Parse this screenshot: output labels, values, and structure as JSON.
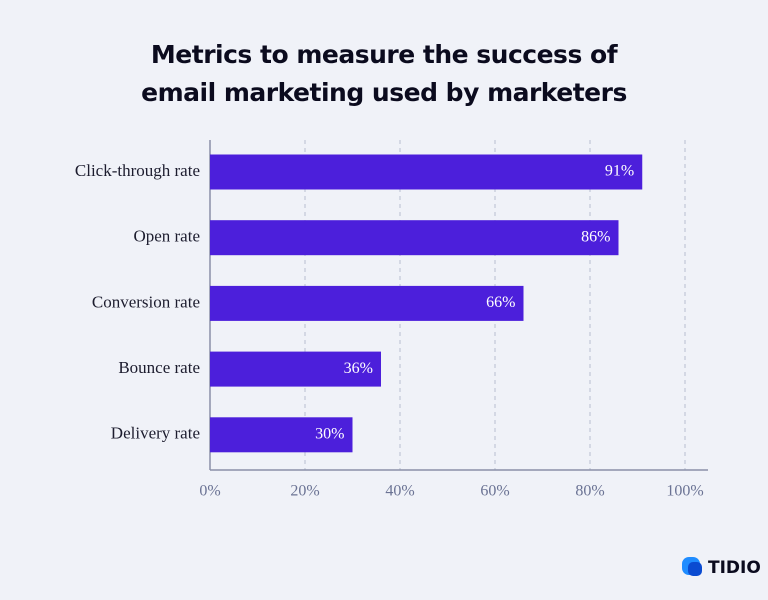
{
  "chart_data": {
    "type": "bar",
    "orientation": "horizontal",
    "title": "Metrics to measure the success of email marketing used by marketers",
    "categories": [
      "Click-through rate",
      "Open rate",
      "Conversion rate",
      "Bounce rate",
      "Delivery rate"
    ],
    "values": [
      91,
      86,
      66,
      36,
      30
    ],
    "value_labels": [
      "91%",
      "86%",
      "66%",
      "36%",
      "30%"
    ],
    "color": "#4c1fdb",
    "xlim": [
      0,
      100
    ],
    "xticks": [
      {
        "value": 0,
        "label": "0%"
      },
      {
        "value": 20,
        "label": "20%"
      },
      {
        "value": 40,
        "label": "40%"
      },
      {
        "value": 60,
        "label": "60%"
      },
      {
        "value": 80,
        "label": "80%"
      },
      {
        "value": 100,
        "label": "100%"
      }
    ],
    "grid": true
  },
  "brand": "TIDIO"
}
